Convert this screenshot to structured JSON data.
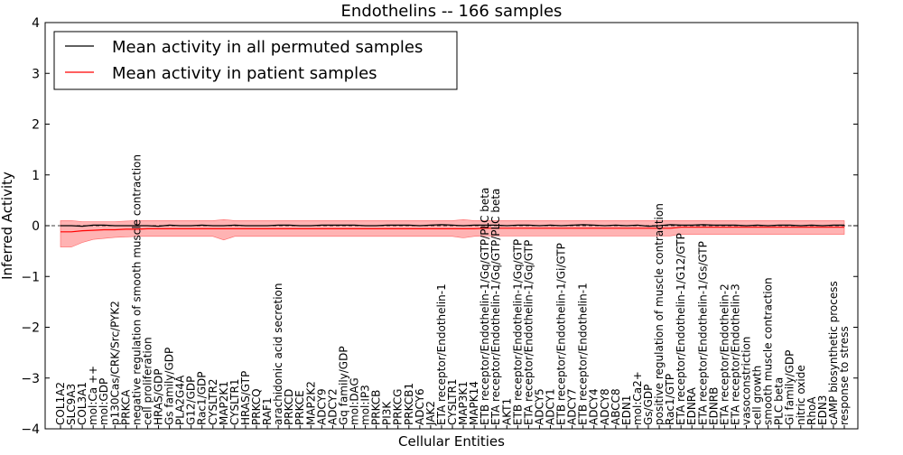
{
  "chart_data": {
    "type": "line",
    "title": "Endothelins -- 166 samples",
    "xlabel": "Cellular Entities",
    "ylabel": "Inferred Activity",
    "ylim": [
      -4,
      4
    ],
    "yticks": [
      "4",
      "3",
      "2",
      "1",
      "0",
      "−1",
      "−2",
      "−3",
      "−4"
    ],
    "legend": {
      "position": "top-left",
      "entries": [
        {
          "label": "Mean activity in all permuted samples",
          "color": "#000000"
        },
        {
          "label": "Mean activity in patient samples",
          "color": "#ff0000"
        }
      ]
    },
    "colors": {
      "permuted": "#000000",
      "patient": "#ff0000",
      "band": "#ff9999"
    },
    "categories": [
      "COL1A2",
      "SLC9A3",
      "COL3A1",
      "mol:Ca ++",
      "mol:GDP",
      "p130Cas/CRK/Src/PYK2",
      "PRKCA",
      "negative regulation of smooth muscle contraction",
      "cell proliferation",
      "HRAS/GDP",
      "Gs family/GDP",
      "PLA2G4A",
      "G12/GDP",
      "Rac1/GDP",
      "CYSLTR2",
      "MAP2K1",
      "CYSLTR1",
      "HRAS/GTP",
      "PRKCQ",
      "RAF1",
      "arachidonic acid secretion",
      "PRKCD",
      "PRKCE",
      "MAP2K2",
      "ADCY9",
      "ADCY2",
      "Gq family/GDP",
      "mol:DAG",
      "mol:IP3",
      "PRKCB",
      "PI3K",
      "PRKCG",
      "PRKCB1",
      "ADCY6",
      "JAK2",
      "ETA receptor/Endothelin-1",
      "CYSLTR1",
      "MAP3K1",
      "MAPK14",
      "ETB receptor/Endothelin-1/Gq/GTP/PLC beta",
      "ETA receptor/Endothelin-1/Gq/GTP/PLC beta",
      "AKT1",
      "ETB receptor/Endothelin-1/Gq/GTP",
      "ETA receptor/Endothelin-1/Gq/GTP",
      "ADCY5",
      "ADCY1",
      "ETB receptor/Endothelin-1/Gi/GTP",
      "ADCY7",
      "ETB receptor/Endothelin-1",
      "ADCY4",
      "ADCY8",
      "ABCC8",
      "EDN1",
      "mol:Ca2+",
      "Gs/GDP",
      "positive regulation of muscle contraction",
      "Rac1/GTP",
      "ETA receptor/Endothelin-1/G12/GTP",
      "EDNRA",
      "ETA receptor/Endothelin-1/Gs/GTP",
      "EDNRB",
      "ETA receptor/Endothelin-2",
      "ETA receptor/Endothelin-3",
      "vasoconstriction",
      "cell growth",
      "smooth muscle contraction",
      "PLC beta",
      "Gi family/GDP",
      "nitric oxide",
      "RhoA",
      "EDN3",
      "cAMP biosynthetic process",
      "response to stress"
    ],
    "series": [
      {
        "name": "Mean activity in all permuted samples",
        "values": [
          0,
          0,
          -0.01,
          0.01,
          0.01,
          0,
          0,
          0,
          0,
          -0.01,
          0.01,
          0,
          0,
          0.01,
          0,
          0,
          0.01,
          0,
          0,
          0,
          0.01,
          0.01,
          0,
          0,
          0.01,
          0.01,
          0.01,
          0.01,
          0,
          0,
          0.01,
          0.01,
          0.01,
          0,
          0.01,
          0.02,
          0.01,
          0,
          0.01,
          0.01,
          0.01,
          0,
          0.01,
          0.01,
          0,
          0.01,
          0,
          0.01,
          0.02,
          0.01,
          0,
          0.01,
          0,
          0.01,
          -0.01,
          0,
          0.02,
          0.01,
          0.01,
          0.02,
          0.01,
          0.01,
          0.01,
          0,
          0.01,
          0,
          0.01,
          0.01,
          0,
          0.01,
          0,
          0.01,
          0.01
        ]
      },
      {
        "name": "Mean activity in patient samples",
        "values": [
          -0.12,
          -0.12,
          -0.1,
          -0.09,
          -0.08,
          -0.08,
          -0.07,
          -0.07,
          -0.06,
          -0.06,
          -0.06,
          -0.06,
          -0.06,
          -0.06,
          -0.06,
          -0.06,
          -0.06,
          -0.06,
          -0.06,
          -0.06,
          -0.06,
          -0.06,
          -0.06,
          -0.06,
          -0.06,
          -0.06,
          -0.06,
          -0.06,
          -0.06,
          -0.06,
          -0.06,
          -0.06,
          -0.06,
          -0.06,
          -0.06,
          -0.06,
          -0.06,
          -0.06,
          -0.06,
          -0.05,
          -0.05,
          -0.05,
          -0.05,
          -0.05,
          -0.05,
          -0.05,
          -0.05,
          -0.05,
          -0.05,
          -0.05,
          -0.05,
          -0.05,
          -0.05,
          -0.05,
          -0.05,
          -0.05,
          -0.05,
          -0.03,
          -0.03,
          -0.03,
          -0.03,
          -0.03,
          -0.03,
          -0.03,
          -0.03,
          -0.03,
          -0.03,
          -0.03,
          -0.03,
          -0.03,
          -0.03,
          -0.03,
          -0.03
        ]
      },
      {
        "name": "patient band lower",
        "values": [
          -0.42,
          -0.42,
          -0.33,
          -0.27,
          -0.25,
          -0.23,
          -0.22,
          -0.21,
          -0.21,
          -0.21,
          -0.21,
          -0.21,
          -0.21,
          -0.21,
          -0.21,
          -0.28,
          -0.21,
          -0.21,
          -0.21,
          -0.21,
          -0.21,
          -0.21,
          -0.21,
          -0.21,
          -0.21,
          -0.21,
          -0.21,
          -0.21,
          -0.21,
          -0.21,
          -0.21,
          -0.21,
          -0.21,
          -0.21,
          -0.21,
          -0.21,
          -0.21,
          -0.24,
          -0.21,
          -0.2,
          -0.2,
          -0.2,
          -0.2,
          -0.2,
          -0.2,
          -0.2,
          -0.2,
          -0.2,
          -0.2,
          -0.2,
          -0.2,
          -0.2,
          -0.2,
          -0.2,
          -0.2,
          -0.2,
          -0.2,
          -0.17,
          -0.17,
          -0.17,
          -0.17,
          -0.17,
          -0.17,
          -0.17,
          -0.17,
          -0.17,
          -0.17,
          -0.17,
          -0.17,
          -0.17,
          -0.17,
          -0.17,
          -0.17
        ]
      },
      {
        "name": "patient band upper",
        "values": [
          0.1,
          0.1,
          0.08,
          0.08,
          0.08,
          0.08,
          0.09,
          0.1,
          0.1,
          0.1,
          0.1,
          0.1,
          0.1,
          0.1,
          0.1,
          0.12,
          0.1,
          0.1,
          0.1,
          0.1,
          0.1,
          0.1,
          0.1,
          0.1,
          0.1,
          0.1,
          0.1,
          0.1,
          0.1,
          0.1,
          0.1,
          0.1,
          0.1,
          0.1,
          0.1,
          0.1,
          0.1,
          0.12,
          0.1,
          0.1,
          0.1,
          0.1,
          0.1,
          0.1,
          0.1,
          0.1,
          0.1,
          0.1,
          0.1,
          0.1,
          0.1,
          0.1,
          0.1,
          0.1,
          0.1,
          0.1,
          0.1,
          0.1,
          0.1,
          0.1,
          0.1,
          0.1,
          0.1,
          0.1,
          0.1,
          0.1,
          0.1,
          0.1,
          0.1,
          0.1,
          0.1,
          0.1,
          0.1
        ]
      }
    ]
  }
}
